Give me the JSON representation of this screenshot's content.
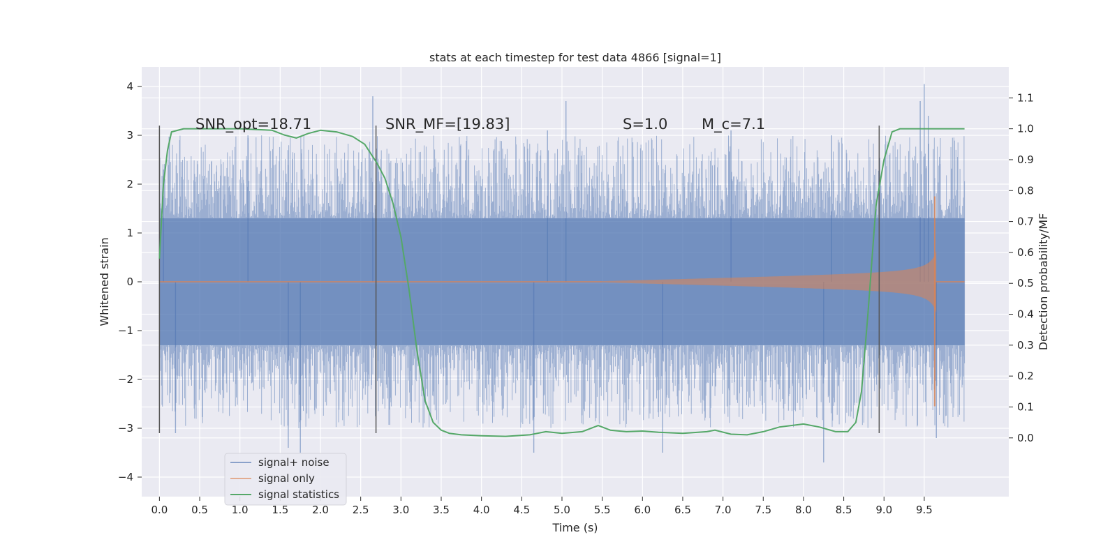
{
  "chart_data": {
    "type": "line",
    "title": "stats at each timestep for test data 4866 [signal=1]",
    "xlabel": "Time (s)",
    "ylabel": "Whitened strain",
    "y2label": "Detection probability/MF",
    "xlim": [
      -0.22,
      10.55
    ],
    "ylim": [
      -4.4,
      4.4
    ],
    "y2lim": [
      -0.19,
      1.2
    ],
    "xticks": [
      0.0,
      0.5,
      1.0,
      1.5,
      2.0,
      2.5,
      3.0,
      3.5,
      4.0,
      4.5,
      5.0,
      5.5,
      6.0,
      6.5,
      7.0,
      7.5,
      8.0,
      8.5,
      9.0,
      9.5
    ],
    "xtick_labels": [
      "0.0",
      "0.5",
      "1.0",
      "1.5",
      "2.0",
      "2.5",
      "3.0",
      "3.5",
      "4.0",
      "4.5",
      "5.0",
      "5.5",
      "6.0",
      "6.5",
      "7.0",
      "7.5",
      "8.0",
      "8.5",
      "9.0",
      "9.5"
    ],
    "yticks": [
      -4,
      -3,
      -2,
      -1,
      0,
      1,
      2,
      3,
      4
    ],
    "ytick_labels": [
      "−4",
      "−3",
      "−2",
      "−1",
      "0",
      "1",
      "2",
      "3",
      "4"
    ],
    "y2ticks": [
      0.0,
      0.1,
      0.2,
      0.3,
      0.4,
      0.5,
      0.6,
      0.7,
      0.8,
      0.9,
      1.0,
      1.1
    ],
    "y2tick_labels": [
      "0.0",
      "0.1",
      "0.2",
      "0.3",
      "0.4",
      "0.5",
      "0.6",
      "0.7",
      "0.8",
      "0.9",
      "1.0",
      "1.1"
    ],
    "grid": true,
    "legend_position": "lower-left",
    "annotations": [
      {
        "text": "SNR_opt=18.71",
        "x": 0.2
      },
      {
        "text": "SNR_MF=[19.83]",
        "x": 2.6
      },
      {
        "text": "S=1.0",
        "x": 5.6
      },
      {
        "text": "M_c=7.1",
        "x": 6.6
      }
    ],
    "vertical_lines": [
      0.0,
      2.69,
      8.94
    ],
    "series": [
      {
        "name": "signal+ noise",
        "color": "#4c72b0",
        "x_range": [
          0.0,
          10.0
        ],
        "envelope_inner": 1.3,
        "envelope_typical_peak": 2.1,
        "extreme_peaks": [
          [
            0.05,
            2.3
          ],
          [
            1.1,
            3.0
          ],
          [
            2.65,
            3.8
          ],
          [
            4.82,
            3.1
          ],
          [
            5.05,
            3.7
          ],
          [
            7.1,
            3.1
          ],
          [
            8.35,
            3.0
          ],
          [
            9.45,
            3.7
          ],
          [
            9.5,
            4.05
          ],
          [
            9.55,
            3.4
          ]
        ],
        "extreme_troughs": [
          [
            0.2,
            -3.1
          ],
          [
            1.6,
            -3.4
          ],
          [
            1.75,
            -3.5
          ],
          [
            4.65,
            -3.5
          ],
          [
            6.25,
            -3.5
          ],
          [
            8.25,
            -3.7
          ],
          [
            9.65,
            -3.2
          ]
        ]
      },
      {
        "name": "signal only",
        "color": "#dd8452",
        "x_range": [
          0.0,
          10.0
        ],
        "chirp_start": 5.5,
        "chirp_merger": 9.65,
        "peak_amplitude": 1.8
      },
      {
        "name": "signal statistics",
        "color": "#55a868",
        "axis": "right",
        "x": [
          0.0,
          0.05,
          0.1,
          0.15,
          0.3,
          0.6,
          1.0,
          1.4,
          1.55,
          1.7,
          1.85,
          2.0,
          2.2,
          2.4,
          2.55,
          2.7,
          2.8,
          2.9,
          3.0,
          3.1,
          3.2,
          3.3,
          3.4,
          3.5,
          3.6,
          3.75,
          4.0,
          4.3,
          4.6,
          4.8,
          5.0,
          5.25,
          5.45,
          5.6,
          5.8,
          6.0,
          6.2,
          6.5,
          6.8,
          6.9,
          7.1,
          7.3,
          7.5,
          7.7,
          8.0,
          8.2,
          8.4,
          8.55,
          8.65,
          8.72,
          8.8,
          8.9,
          9.0,
          9.1,
          9.2,
          9.3,
          9.5,
          10.0
        ],
        "y": [
          0.58,
          0.82,
          0.93,
          0.99,
          1.0,
          1.0,
          1.0,
          0.995,
          0.98,
          0.97,
          0.985,
          0.995,
          0.99,
          0.975,
          0.95,
          0.89,
          0.84,
          0.76,
          0.65,
          0.48,
          0.28,
          0.12,
          0.05,
          0.025,
          0.015,
          0.01,
          0.007,
          0.005,
          0.01,
          0.02,
          0.015,
          0.02,
          0.04,
          0.025,
          0.02,
          0.022,
          0.018,
          0.015,
          0.02,
          0.025,
          0.012,
          0.01,
          0.02,
          0.035,
          0.045,
          0.035,
          0.02,
          0.02,
          0.05,
          0.15,
          0.4,
          0.75,
          0.9,
          0.99,
          1.0,
          1.0,
          1.0,
          1.0
        ]
      }
    ]
  }
}
